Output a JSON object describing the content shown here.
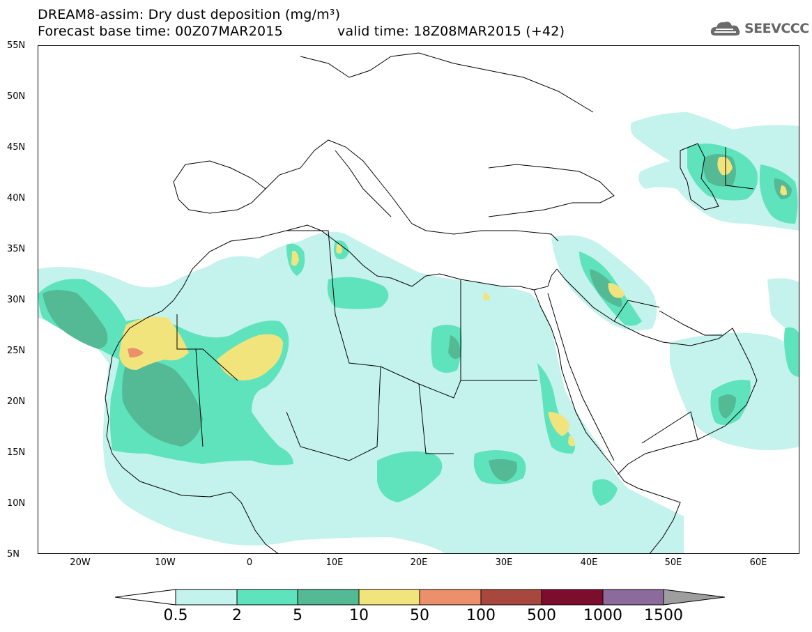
{
  "title": {
    "line1": "DREAM8-assim: Dry dust deposition (mg/m³)",
    "line2_left": "Forecast base time: 00Z07MAR2015",
    "line2_right": "valid time: 18Z08MAR2015 (+42)"
  },
  "logo": {
    "text": "SEEVCCC",
    "icon": "cloud-icon"
  },
  "axes": {
    "lat_ticks": [
      "55N",
      "50N",
      "45N",
      "40N",
      "35N",
      "30N",
      "25N",
      "20N",
      "15N",
      "10N",
      "5N"
    ],
    "lon_ticks": [
      "20W",
      "10W",
      "0",
      "10E",
      "20E",
      "30E",
      "40E",
      "50E",
      "60E"
    ],
    "lat_range": [
      5,
      55
    ],
    "lon_range": [
      -25,
      65
    ]
  },
  "colorbar": {
    "labels": [
      "0.5",
      "2",
      "5",
      "10",
      "50",
      "100",
      "500",
      "1000",
      "1500"
    ],
    "colors": [
      "#c4f2ec",
      "#5fe3bc",
      "#54b995",
      "#f2e47c",
      "#ec8f6b",
      "#a8473d",
      "#7c0d2d",
      "#8c6a9c"
    ],
    "arrow_low": "#ffffff",
    "arrow_high": "#9e9e9e"
  },
  "map_colors": {
    "level1": "#c4f2ec",
    "level2": "#5fe3bc",
    "level3": "#54b995",
    "level4": "#f2e47c",
    "level5": "#ec8f6b"
  }
}
